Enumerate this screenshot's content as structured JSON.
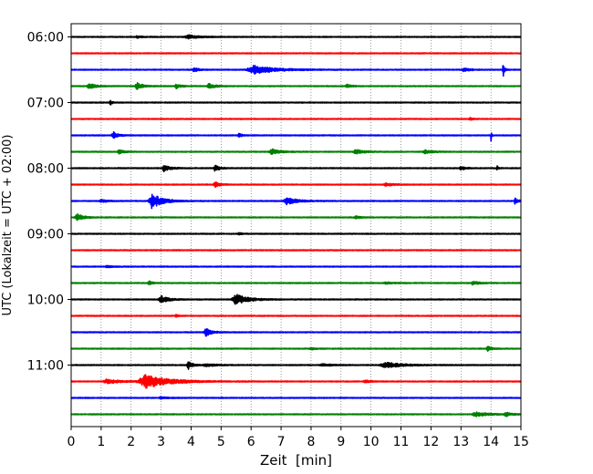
{
  "chart_data": {
    "type": "line",
    "title": "",
    "xlabel": "Zeit  [min]",
    "ylabel": "UTC (Lokalzeit = UTC + 02:00)",
    "xlim": [
      0,
      15
    ],
    "x_ticks": [
      "0",
      "1",
      "2",
      "3",
      "4",
      "5",
      "6",
      "7",
      "8",
      "9",
      "10",
      "11",
      "12",
      "13",
      "14",
      "15"
    ],
    "y_tick_labels": [
      "06:00",
      "07:00",
      "08:00",
      "09:00",
      "10:00",
      "11:00"
    ],
    "grid": "vertical dotted lines at each minute",
    "trace_color_cycle": [
      "#000000",
      "#ff0000",
      "#0000ff",
      "#008000"
    ],
    "trace_interval_minutes": 15,
    "first_trace": "06:00",
    "traces": [
      {
        "start": "06:00",
        "color": "#000000",
        "events": [
          {
            "t": 3.9,
            "a": 0.25,
            "d": 0.7
          },
          {
            "t": 2.2,
            "a": 0.15,
            "d": 0.3
          }
        ]
      },
      {
        "start": "06:15",
        "color": "#ff0000",
        "events": []
      },
      {
        "start": "06:30",
        "color": "#0000ff",
        "events": [
          {
            "t": 6.1,
            "a": 0.55,
            "d": 1.5
          },
          {
            "t": 14.4,
            "a": 1.4,
            "d": 0.08
          },
          {
            "t": 4.1,
            "a": 0.3,
            "d": 0.3
          },
          {
            "t": 13.1,
            "a": 0.25,
            "d": 0.4
          }
        ]
      },
      {
        "start": "06:45",
        "color": "#008000",
        "events": [
          {
            "t": 0.6,
            "a": 0.4,
            "d": 0.4
          },
          {
            "t": 2.2,
            "a": 0.45,
            "d": 0.4
          },
          {
            "t": 3.5,
            "a": 0.3,
            "d": 0.3
          },
          {
            "t": 4.6,
            "a": 0.35,
            "d": 0.4
          },
          {
            "t": 9.2,
            "a": 0.25,
            "d": 0.3
          }
        ]
      },
      {
        "start": "07:00",
        "color": "#000000",
        "events": [
          {
            "t": 1.3,
            "a": 0.45,
            "d": 0.1
          }
        ]
      },
      {
        "start": "07:15",
        "color": "#ff0000",
        "events": [
          {
            "t": 13.3,
            "a": 0.15,
            "d": 0.2
          }
        ]
      },
      {
        "start": "07:30",
        "color": "#0000ff",
        "events": [
          {
            "t": 1.4,
            "a": 0.5,
            "d": 0.3
          },
          {
            "t": 14.0,
            "a": 0.9,
            "d": 0.05
          },
          {
            "t": 5.6,
            "a": 0.3,
            "d": 0.2
          }
        ]
      },
      {
        "start": "07:45",
        "color": "#008000",
        "events": [
          {
            "t": 6.7,
            "a": 0.4,
            "d": 0.5
          },
          {
            "t": 1.6,
            "a": 0.3,
            "d": 0.3
          },
          {
            "t": 9.5,
            "a": 0.3,
            "d": 0.5
          },
          {
            "t": 11.8,
            "a": 0.25,
            "d": 0.5
          }
        ]
      },
      {
        "start": "08:00",
        "color": "#000000",
        "events": [
          {
            "t": 3.1,
            "a": 0.45,
            "d": 0.4
          },
          {
            "t": 4.8,
            "a": 0.4,
            "d": 0.3
          },
          {
            "t": 13.0,
            "a": 0.3,
            "d": 0.3
          },
          {
            "t": 14.2,
            "a": 0.35,
            "d": 0.1
          }
        ]
      },
      {
        "start": "08:15",
        "color": "#ff0000",
        "events": [
          {
            "t": 4.8,
            "a": 0.35,
            "d": 0.3
          },
          {
            "t": 10.5,
            "a": 0.15,
            "d": 0.6
          }
        ]
      },
      {
        "start": "08:30",
        "color": "#0000ff",
        "events": [
          {
            "t": 2.7,
            "a": 1.0,
            "d": 0.7
          },
          {
            "t": 7.2,
            "a": 0.5,
            "d": 0.7
          },
          {
            "t": 14.8,
            "a": 0.4,
            "d": 0.2
          },
          {
            "t": 1.0,
            "a": 0.2,
            "d": 0.4
          }
        ]
      },
      {
        "start": "08:45",
        "color": "#008000",
        "events": [
          {
            "t": 0.2,
            "a": 0.55,
            "d": 0.4
          },
          {
            "t": 9.5,
            "a": 0.15,
            "d": 0.4
          }
        ]
      },
      {
        "start": "09:00",
        "color": "#000000",
        "events": [
          {
            "t": 5.6,
            "a": 0.12,
            "d": 0.2
          }
        ]
      },
      {
        "start": "09:15",
        "color": "#ff0000",
        "events": []
      },
      {
        "start": "09:30",
        "color": "#0000ff",
        "events": [
          {
            "t": 1.2,
            "a": 0.15,
            "d": 0.3
          }
        ]
      },
      {
        "start": "09:45",
        "color": "#008000",
        "events": [
          {
            "t": 2.6,
            "a": 0.3,
            "d": 0.2
          },
          {
            "t": 13.4,
            "a": 0.25,
            "d": 0.4
          },
          {
            "t": 10.5,
            "a": 0.12,
            "d": 0.5
          }
        ]
      },
      {
        "start": "10:00",
        "color": "#000000",
        "events": [
          {
            "t": 5.5,
            "a": 0.7,
            "d": 0.8
          },
          {
            "t": 3.0,
            "a": 0.5,
            "d": 0.5
          }
        ]
      },
      {
        "start": "10:15",
        "color": "#ff0000",
        "events": [
          {
            "t": 3.5,
            "a": 0.15,
            "d": 0.2
          }
        ]
      },
      {
        "start": "10:30",
        "color": "#0000ff",
        "events": [
          {
            "t": 4.5,
            "a": 0.5,
            "d": 0.4
          }
        ]
      },
      {
        "start": "10:45",
        "color": "#008000",
        "events": [
          {
            "t": 13.9,
            "a": 0.3,
            "d": 0.3
          },
          {
            "t": 8.0,
            "a": 0.12,
            "d": 0.4
          }
        ]
      },
      {
        "start": "11:00",
        "color": "#000000",
        "events": [
          {
            "t": 3.9,
            "a": 0.6,
            "d": 0.3
          },
          {
            "t": 10.5,
            "a": 0.35,
            "d": 1.2
          },
          {
            "t": 4.5,
            "a": 0.2,
            "d": 0.6
          },
          {
            "t": 8.4,
            "a": 0.15,
            "d": 0.6
          }
        ]
      },
      {
        "start": "11:15",
        "color": "#ff0000",
        "events": [
          {
            "t": 2.5,
            "a": 0.9,
            "d": 1.6
          },
          {
            "t": 9.8,
            "a": 0.2,
            "d": 0.3
          },
          {
            "t": 1.2,
            "a": 0.3,
            "d": 0.8
          }
        ]
      },
      {
        "start": "11:30",
        "color": "#0000ff",
        "events": [
          {
            "t": 3.0,
            "a": 0.12,
            "d": 0.5
          }
        ]
      },
      {
        "start": "11:45",
        "color": "#008000",
        "events": [
          {
            "t": 13.5,
            "a": 0.3,
            "d": 0.8
          },
          {
            "t": 14.5,
            "a": 0.25,
            "d": 0.4
          }
        ]
      }
    ]
  }
}
